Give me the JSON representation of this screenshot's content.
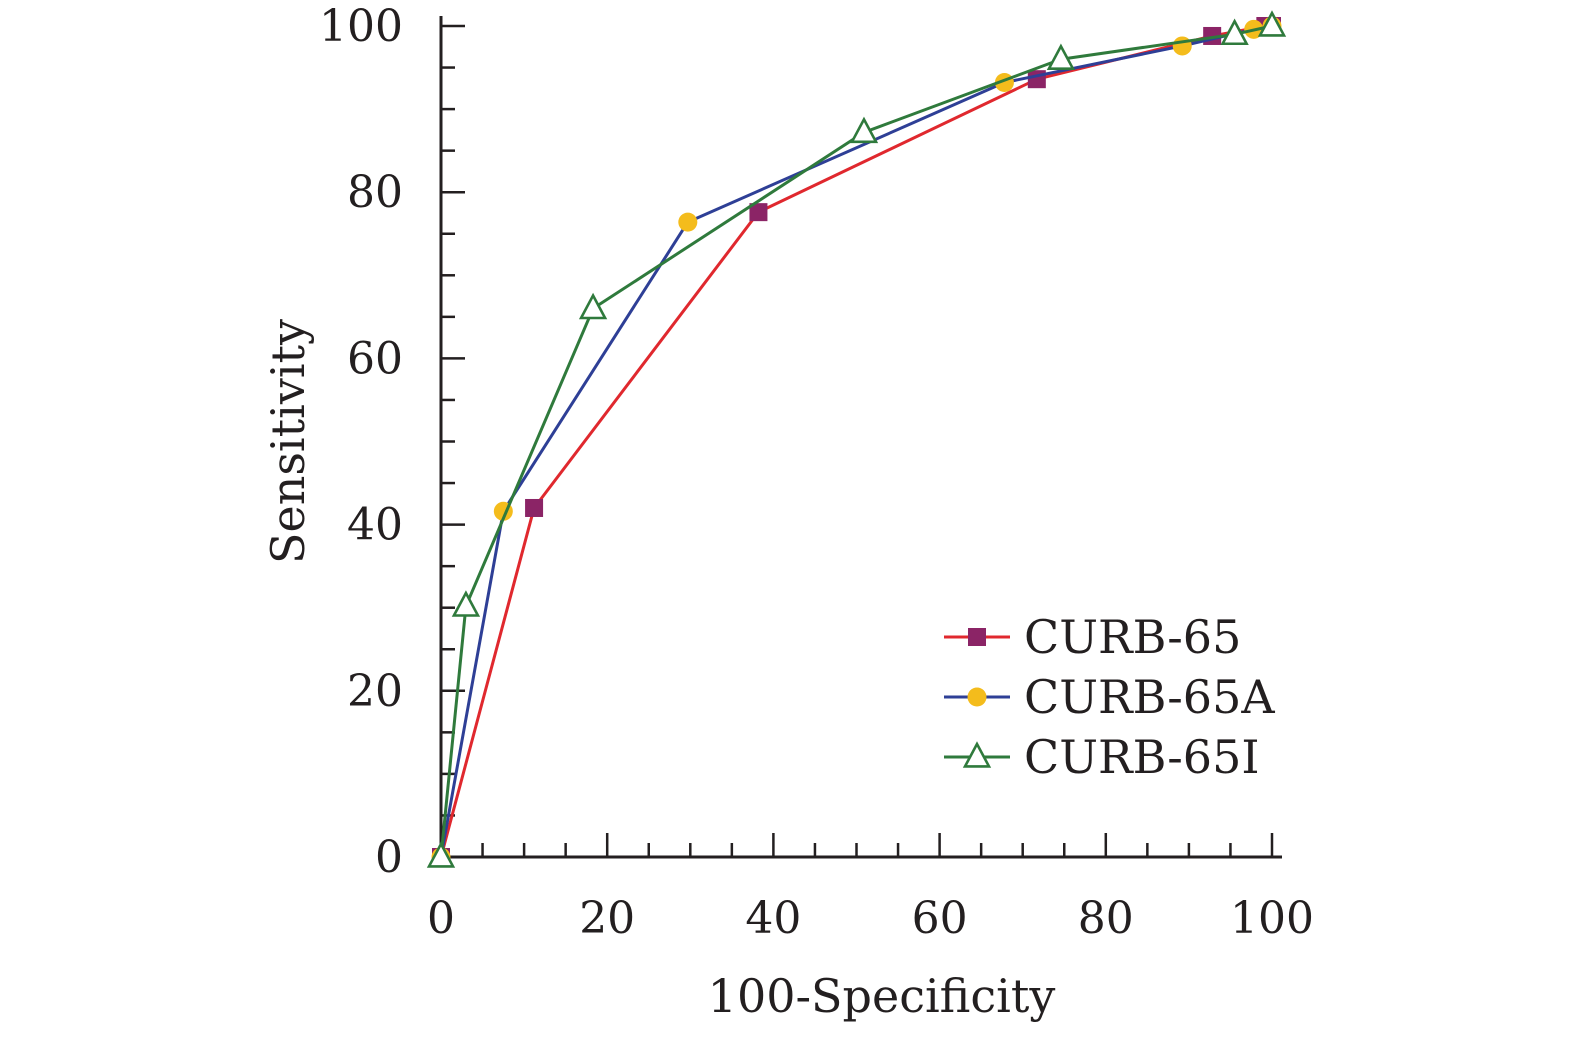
{
  "chart_data": {
    "type": "line",
    "xlabel": "100-Specificity",
    "ylabel": "Sensitivity",
    "xlim": [
      0,
      100
    ],
    "ylim": [
      0,
      100
    ],
    "xticks": [
      "0",
      "20",
      "40",
      "60",
      "80",
      "100"
    ],
    "yticks": [
      "0",
      "20",
      "40",
      "60",
      "80",
      "100"
    ],
    "x_minor_step": 5,
    "y_minor_step": 5,
    "grid": false,
    "legend_position": "bottom-right",
    "series": [
      {
        "name": "CURB-65",
        "color": "#e0282e",
        "marker": "square",
        "marker_color": "#8b2466",
        "x": [
          0,
          11.2,
          38.2,
          71.7,
          92.8,
          99.2,
          100
        ],
        "y": [
          0,
          42.0,
          77.6,
          93.6,
          98.8,
          100,
          100
        ]
      },
      {
        "name": "CURB-65A",
        "color": "#2e3f96",
        "marker": "circle",
        "marker_color": "#f4bc1c",
        "x": [
          0,
          7.5,
          29.7,
          67.8,
          89.2,
          97.8,
          100
        ],
        "y": [
          0,
          41.6,
          76.4,
          93.2,
          97.6,
          99.6,
          100
        ]
      },
      {
        "name": "CURB-65I",
        "color": "#2f7a3c",
        "marker": "triangle",
        "marker_color": "#ffffff",
        "x": [
          0,
          3.0,
          18.3,
          50.9,
          74.6,
          95.5,
          100
        ],
        "y": [
          0,
          30.2,
          66.0,
          87.2,
          96.0,
          99.0,
          100
        ]
      }
    ]
  }
}
